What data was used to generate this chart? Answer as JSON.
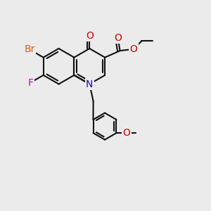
{
  "background_color": "#ebebeb",
  "bond_color": "#111111",
  "bond_width": 1.5,
  "atom_colors": {
    "N": "#2200cc",
    "O": "#cc0000",
    "Br": "#cc6600",
    "F": "#cc00cc"
  },
  "font_size": 10,
  "fig_width": 3.0,
  "fig_height": 3.0,
  "dpi": 100,
  "xlim": [
    1.0,
    10.0
  ],
  "ylim": [
    -0.5,
    9.5
  ]
}
